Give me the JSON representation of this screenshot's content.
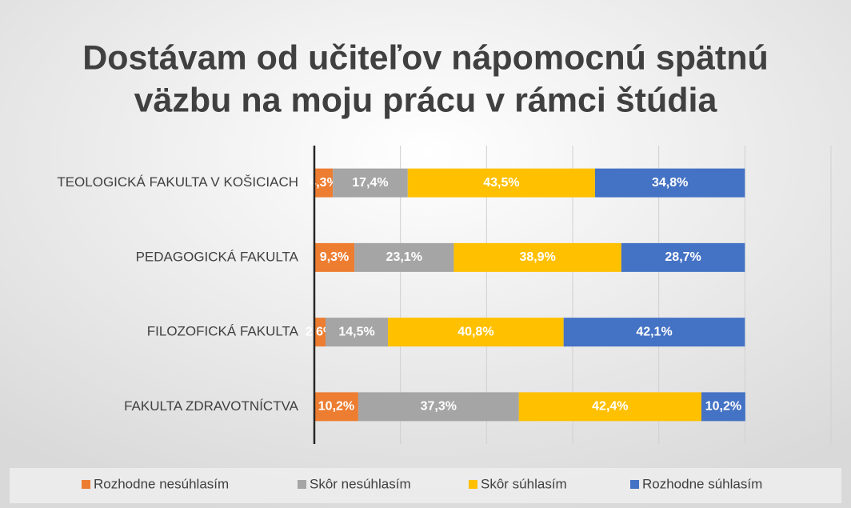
{
  "chart_data": {
    "type": "stacked-barh",
    "title": [
      "Dostávam od učiteľov nápomocnú spätnú",
      "väzbu na moju prácu v rámci štúdia"
    ],
    "categories": [
      "TEOLOGICKÁ FAKULTA V KOŠICIACH",
      "PEDAGOGICKÁ FAKULTA",
      "FILOZOFICKÁ FAKULTA",
      "FAKULTA ZDRAVOTNÍCTVA"
    ],
    "series": [
      {
        "name": "Rozhodne nesúhlasím",
        "color": "#ed7d31",
        "values": [
          4.3,
          9.3,
          2.6,
          10.2
        ],
        "value_labels": [
          "4,3%",
          "9,3%",
          "2,6%",
          "10,2%"
        ]
      },
      {
        "name": "Skôr nesúhlasím",
        "color": "#a5a5a5",
        "values": [
          17.4,
          23.1,
          14.5,
          37.3
        ],
        "value_labels": [
          "17,4%",
          "23,1%",
          "14,5%",
          "37,3%"
        ]
      },
      {
        "name": "Skôr súhlasím",
        "color": "#ffc000",
        "values": [
          43.5,
          38.9,
          40.8,
          42.4
        ],
        "value_labels": [
          "43,5%",
          "38,9%",
          "40,8%",
          "42,4%"
        ]
      },
      {
        "name": "Rozhodne súhlasím",
        "color": "#4472c4",
        "values": [
          34.8,
          28.7,
          42.1,
          10.2
        ],
        "value_labels": [
          "34,8%",
          "28,7%",
          "42,1%",
          "10,2%"
        ]
      }
    ],
    "xlim": [
      0,
      120
    ],
    "xticks": [
      0,
      20,
      40,
      60,
      80,
      100,
      120
    ],
    "tick_labels": false,
    "grid": true,
    "legend": "bottom"
  }
}
